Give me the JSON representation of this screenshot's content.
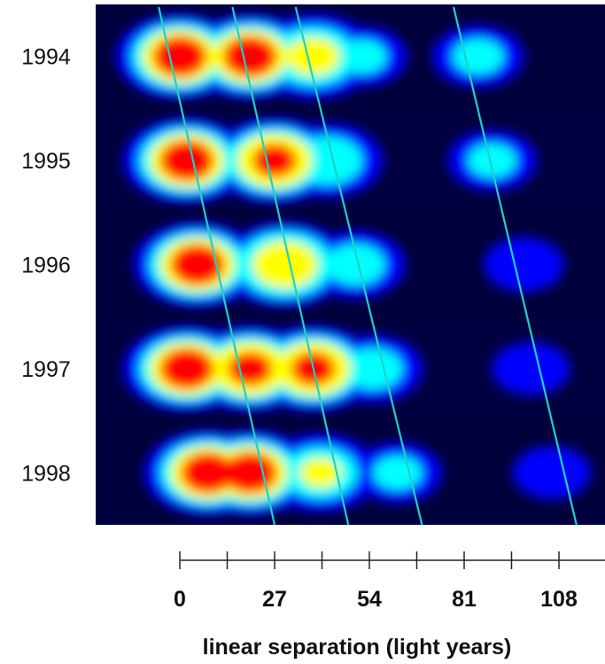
{
  "chart_data": {
    "type": "heatmap",
    "title": "",
    "xlabel": "linear separation (light years)",
    "ylabel": "",
    "x_ticks": [
      0,
      27,
      54,
      81,
      108
    ],
    "x_minor_ticks": [
      13.5,
      40.5,
      67.5,
      94.5,
      121.5
    ],
    "xlim": [
      -20,
      123
    ],
    "rows": [
      "1994",
      "1995",
      "1996",
      "1997",
      "1998"
    ],
    "colormap": [
      "#00003c",
      "#0000ff",
      "#00ffff",
      "#ffff00",
      "#ff0000"
    ],
    "blobs": [
      {
        "year": "1994",
        "components": [
          {
            "x": 0,
            "amp": 1.0
          },
          {
            "x": 20,
            "amp": 1.0
          },
          {
            "x": 38,
            "amp": 0.65
          },
          {
            "x": 52,
            "amp": 0.3
          },
          {
            "x": 85,
            "amp": 0.32
          }
        ]
      },
      {
        "year": "1995",
        "components": [
          {
            "x": 2,
            "amp": 1.0
          },
          {
            "x": 27,
            "amp": 0.85
          },
          {
            "x": 42,
            "amp": 0.5
          },
          {
            "x": 89,
            "amp": 0.3
          }
        ]
      },
      {
        "year": "1996",
        "components": [
          {
            "x": 5,
            "amp": 1.0
          },
          {
            "x": 30,
            "amp": 0.75
          },
          {
            "x": 50,
            "amp": 0.4
          },
          {
            "x": 98,
            "amp": 0.22
          }
        ]
      },
      {
        "year": "1997",
        "components": [
          {
            "x": 2,
            "amp": 0.95
          },
          {
            "x": 20,
            "amp": 0.85
          },
          {
            "x": 38,
            "amp": 0.85
          },
          {
            "x": 55,
            "amp": 0.4
          },
          {
            "x": 100,
            "amp": 0.2
          }
        ]
      },
      {
        "year": "1998",
        "components": [
          {
            "x": 8,
            "amp": 1.0
          },
          {
            "x": 20,
            "amp": 1.0
          },
          {
            "x": 40,
            "amp": 0.55
          },
          {
            "x": 62,
            "amp": 0.3
          },
          {
            "x": 106,
            "amp": 0.2
          }
        ]
      }
    ],
    "motion_lines": [
      {
        "x_1994": -6,
        "x_1998": 27
      },
      {
        "x_1994": 15,
        "x_1998": 48
      },
      {
        "x_1994": 33,
        "x_1998": 69
      },
      {
        "x_1994": 78,
        "x_1998": 113
      }
    ],
    "line_color": "#20d0c8"
  }
}
